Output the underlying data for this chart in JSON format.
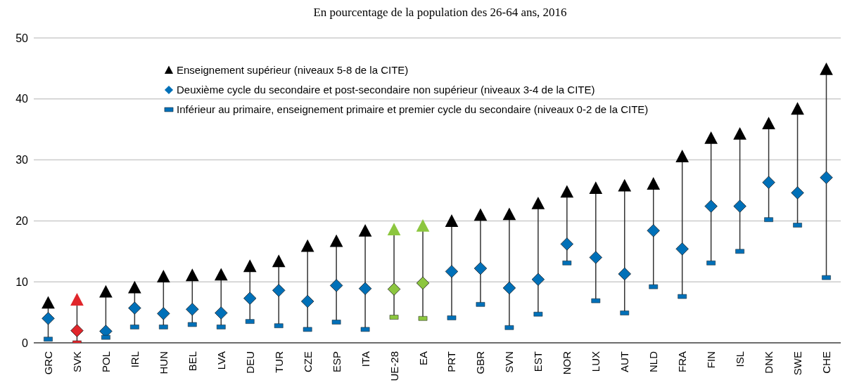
{
  "chart_data": {
    "type": "scatter",
    "title": "En pourcentage de la population des 26-64 ans, 2016",
    "categories": [
      "GRC",
      "SVK",
      "POL",
      "IRL",
      "HUN",
      "BEL",
      "LVA",
      "DEU",
      "TUR",
      "CZE",
      "ESP",
      "ITA",
      "UE-28",
      "EA",
      "PRT",
      "GBR",
      "SVN",
      "EST",
      "NOR",
      "LUX",
      "AUT",
      "NLD",
      "FRA",
      "FIN",
      "ISL",
      "DNK",
      "SWE",
      "CHE"
    ],
    "series": [
      {
        "name": "Enseignement supérieur (niveaux 5-8 de la CITE)",
        "color": "#000000",
        "marker": "triangle",
        "colors": [
          "#000000",
          "#e0262b",
          "#000000",
          "#000000",
          "#000000",
          "#000000",
          "#000000",
          "#000000",
          "#000000",
          "#000000",
          "#000000",
          "#000000",
          "#8cc63f",
          "#8cc63f",
          "#000000",
          "#000000",
          "#000000",
          "#000000",
          "#000000",
          "#000000",
          "#000000",
          "#000000",
          "#000000",
          "#000000",
          "#000000",
          "#000000",
          "#000000",
          "#000000"
        ],
        "values": [
          6.5,
          7.0,
          8.3,
          9.0,
          10.8,
          11.0,
          11.1,
          12.5,
          13.3,
          15.8,
          16.6,
          18.3,
          18.5,
          19.1,
          19.9,
          20.9,
          21.0,
          22.8,
          24.7,
          25.3,
          25.7,
          26.0,
          30.5,
          33.5,
          34.2,
          35.9,
          38.3,
          44.8
        ]
      },
      {
        "name": "Deuxième cycle du secondaire et post-secondaire non supérieur (niveaux 3-4 de la CITE)",
        "color": "#0070b8",
        "marker": "diamond",
        "colors": [
          "#0070b8",
          "#e0262b",
          "#0070b8",
          "#0070b8",
          "#0070b8",
          "#0070b8",
          "#0070b8",
          "#0070b8",
          "#0070b8",
          "#0070b8",
          "#0070b8",
          "#0070b8",
          "#8cc63f",
          "#8cc63f",
          "#0070b8",
          "#0070b8",
          "#0070b8",
          "#0070b8",
          "#0070b8",
          "#0070b8",
          "#0070b8",
          "#0070b8",
          "#0070b8",
          "#0070b8",
          "#0070b8",
          "#0070b8",
          "#0070b8",
          "#0070b8"
        ],
        "values": [
          4.0,
          2.0,
          1.9,
          5.7,
          4.8,
          5.5,
          4.9,
          7.3,
          8.6,
          6.8,
          9.4,
          8.9,
          8.8,
          9.8,
          11.7,
          12.2,
          9.0,
          10.4,
          16.2,
          14.0,
          11.3,
          18.4,
          15.4,
          22.4,
          22.4,
          26.3,
          24.6,
          27.1
        ]
      },
      {
        "name": "Inférieur au primaire, enseignement primaire et premier cycle du secondaire (niveaux 0-2 de la CITE)",
        "color": "#0070b8",
        "colors": [
          "#0070b8",
          "#e0262b",
          "#0070b8",
          "#0070b8",
          "#0070b8",
          "#0070b8",
          "#0070b8",
          "#0070b8",
          "#0070b8",
          "#0070b8",
          "#0070b8",
          "#0070b8",
          "#8cc63f",
          "#8cc63f",
          "#0070b8",
          "#0070b8",
          "#0070b8",
          "#0070b8",
          "#0070b8",
          "#0070b8",
          "#0070b8",
          "#0070b8",
          "#0070b8",
          "#0070b8",
          "#0070b8",
          "#0070b8",
          "#0070b8",
          "#0070b8"
        ],
        "values": [
          0.6,
          0,
          0.9,
          2.6,
          2.6,
          3.0,
          2.6,
          3.5,
          2.8,
          2.2,
          3.4,
          2.2,
          4.2,
          4.0,
          4.1,
          6.3,
          2.5,
          4.7,
          13.1,
          6.9,
          4.9,
          9.2,
          7.6,
          13.1,
          15.0,
          20.2,
          19.3,
          10.7
        ]
      }
    ],
    "ylim": [
      0,
      50
    ],
    "yticks": [
      0,
      10,
      20,
      30,
      40,
      50
    ],
    "grid": "y",
    "legend": "top left"
  }
}
